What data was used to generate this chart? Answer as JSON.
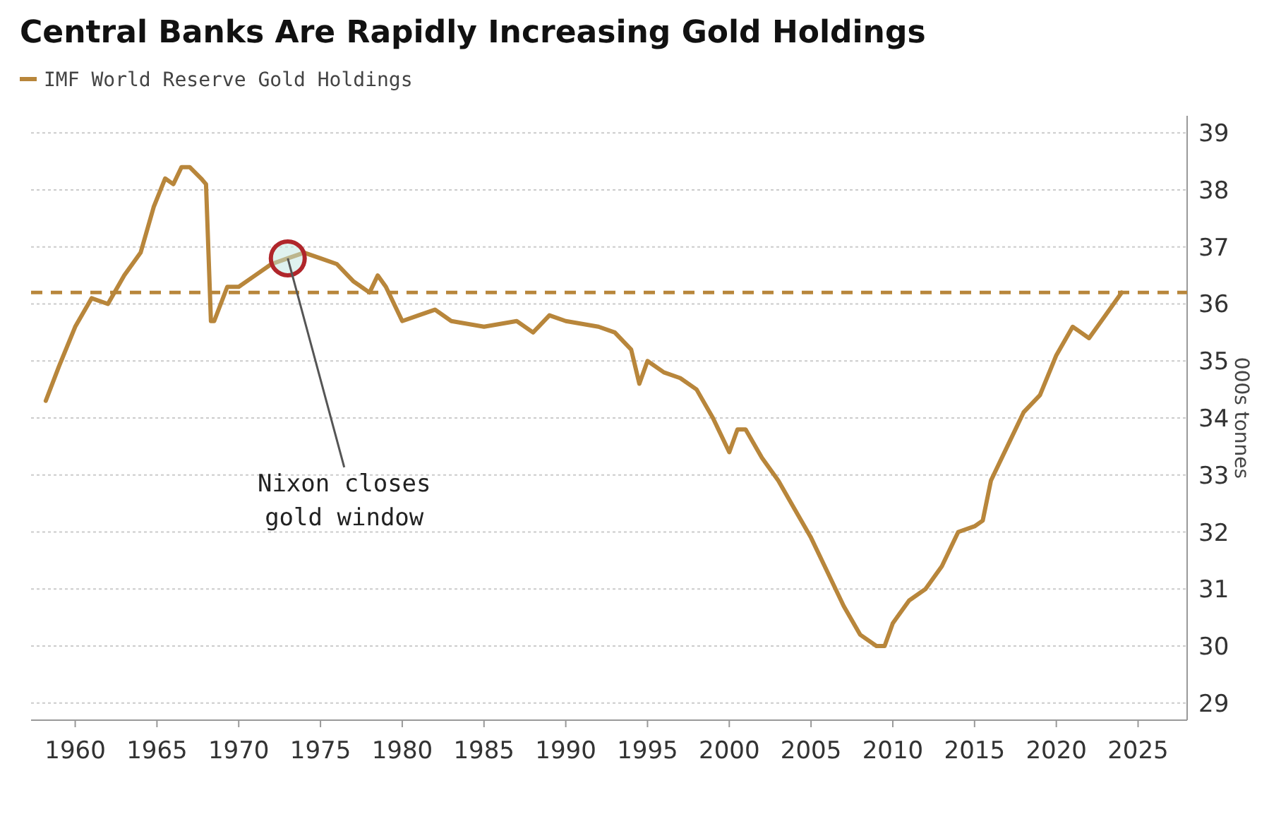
{
  "chart_data": {
    "type": "line",
    "title": "Central Banks Are Rapidly Increasing Gold Holdings",
    "ylabel": "000s tonnes",
    "x": [
      1958.2,
      1959,
      1960,
      1961,
      1962,
      1963,
      1964,
      1964.8,
      1965.5,
      1966,
      1966.5,
      1967,
      1967.7,
      1968,
      1968.3,
      1968.5,
      1969.3,
      1970,
      1971,
      1972,
      1973,
      1974,
      1975,
      1976,
      1977,
      1978,
      1978.5,
      1979,
      1980,
      1981,
      1982,
      1983,
      1985,
      1987,
      1988,
      1989,
      1990,
      1992,
      1993,
      1994,
      1994.5,
      1995,
      1996,
      1997,
      1998,
      1999,
      2000,
      2000.5,
      2001,
      2002,
      2003,
      2004,
      2005,
      2006,
      2007,
      2008,
      2009,
      2009.5,
      2010,
      2011,
      2012,
      2013,
      2014,
      2015,
      2015.5,
      2016,
      2017,
      2018,
      2019,
      2020,
      2021,
      2022,
      2023,
      2024
    ],
    "series": [
      {
        "name": "IMF World Reserve Gold Holdings",
        "color": "#b8863b",
        "values": [
          34.3,
          34.9,
          35.6,
          36.1,
          36.0,
          36.5,
          36.9,
          37.7,
          38.2,
          38.1,
          38.4,
          38.4,
          38.2,
          38.1,
          35.7,
          35.7,
          36.3,
          36.3,
          36.5,
          36.7,
          36.8,
          36.9,
          36.8,
          36.7,
          36.4,
          36.2,
          36.5,
          36.3,
          35.7,
          35.8,
          35.9,
          35.7,
          35.6,
          35.7,
          35.5,
          35.8,
          35.7,
          35.6,
          35.5,
          35.2,
          34.6,
          35.0,
          34.8,
          34.7,
          34.5,
          34.0,
          33.4,
          33.8,
          33.8,
          33.3,
          32.9,
          32.4,
          31.9,
          31.3,
          30.7,
          30.2,
          30.0,
          30.0,
          30.4,
          30.8,
          31.0,
          31.4,
          32.0,
          32.1,
          32.2,
          32.9,
          33.5,
          34.1,
          34.4,
          35.1,
          35.6,
          35.4,
          35.8,
          36.2
        ]
      }
    ],
    "xlim": [
      1957.3,
      2028
    ],
    "xticks": [
      1960,
      1965,
      1970,
      1975,
      1980,
      1985,
      1990,
      1995,
      2000,
      2005,
      2010,
      2015,
      2020,
      2025
    ],
    "ylim": [
      28.7,
      39.3
    ],
    "yticks": [
      29,
      30,
      31,
      32,
      33,
      34,
      35,
      36,
      37,
      38,
      39
    ],
    "ref_lines": [
      {
        "axis": "y",
        "value": 36.2,
        "color": "#b8863b",
        "line_style": "dashed"
      }
    ],
    "annotations": [
      {
        "text": "Nixon closes\ngold window",
        "x": 1973,
        "y": 36.8
      }
    ],
    "grid": "y",
    "legend": "top left",
    "marker": "none",
    "line_style": "solid"
  }
}
